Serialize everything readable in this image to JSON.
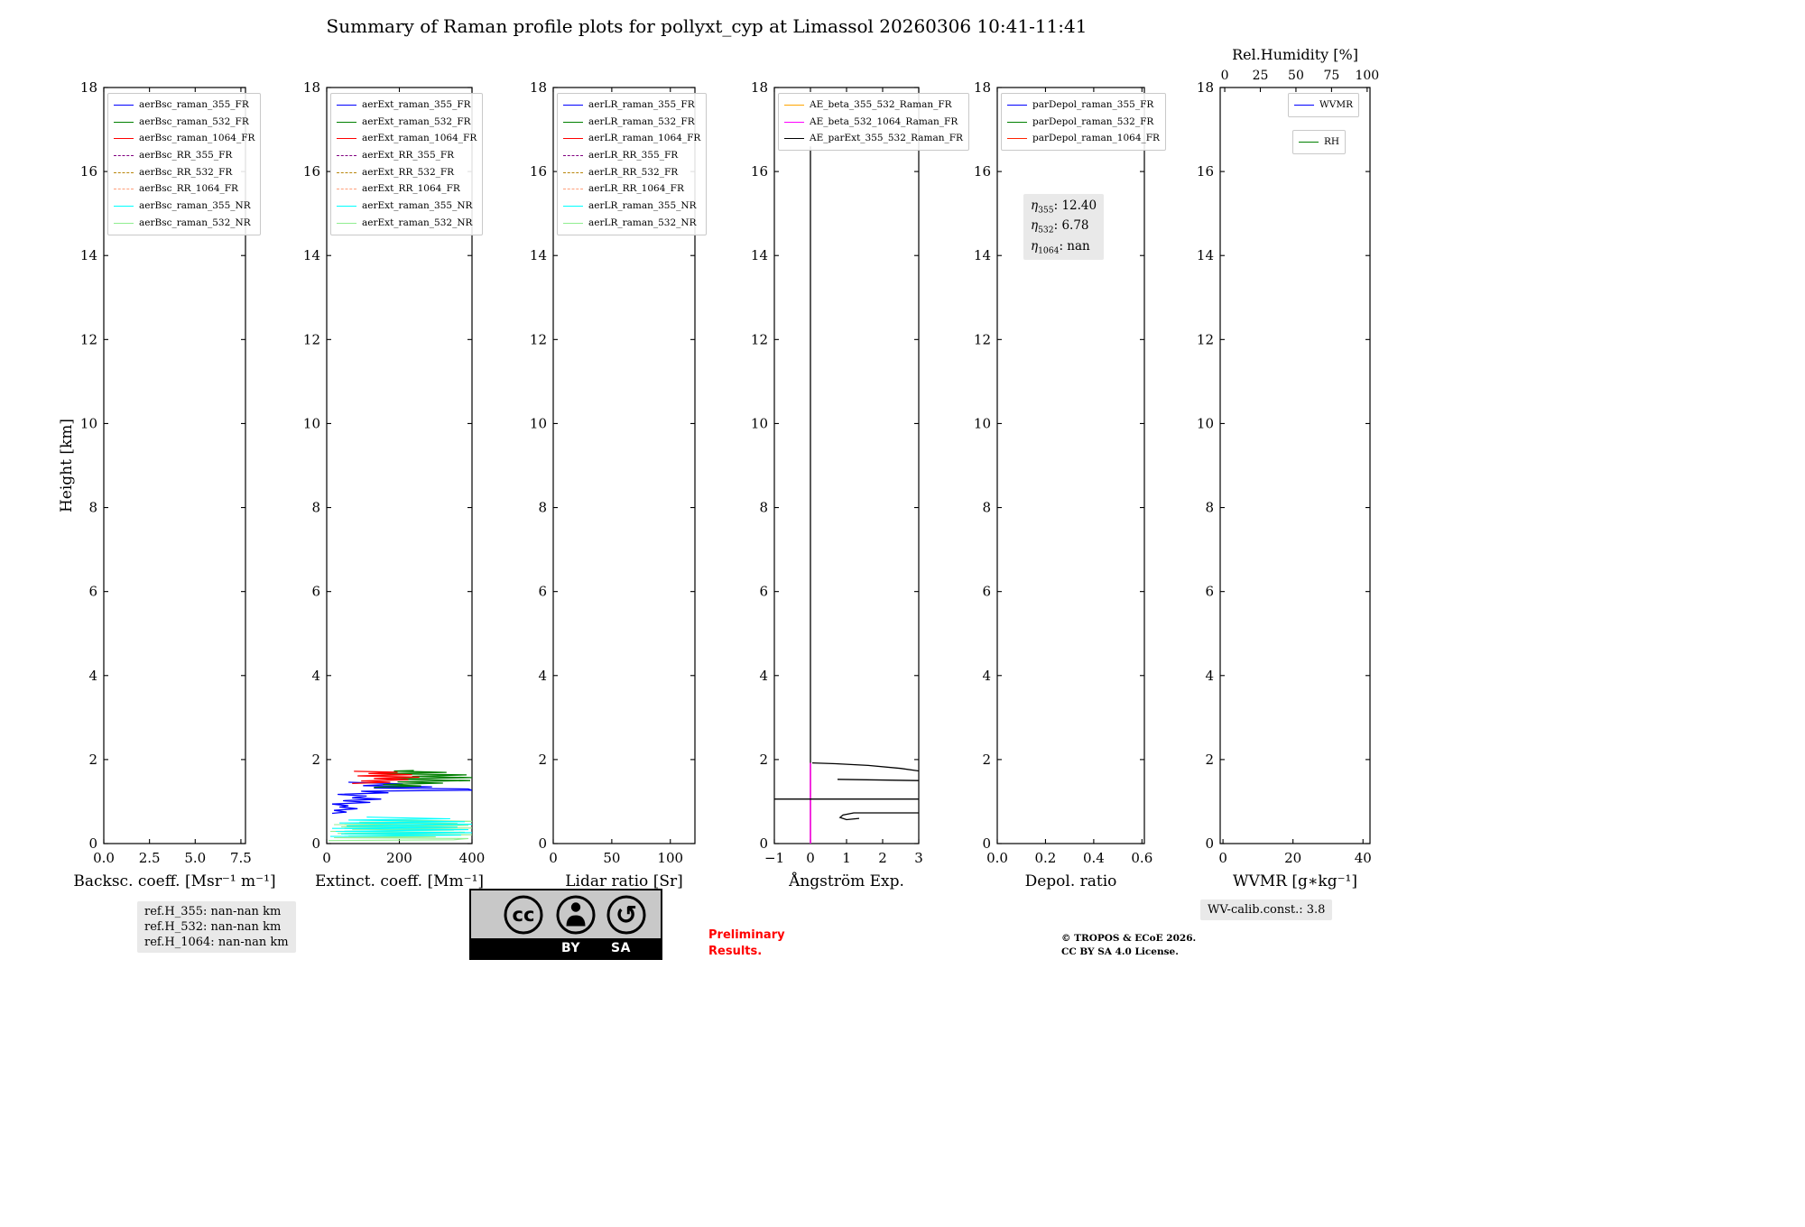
{
  "title": "Summary of Raman profile plots for pollyxt_cyp at Limassol 20260306 10:41-11:41",
  "chart_data": {
    "type": "line",
    "ylabel": "Height [km]",
    "ylim": [
      0,
      18
    ],
    "yticks": [
      0,
      2,
      4,
      6,
      8,
      10,
      12,
      14,
      16,
      18
    ],
    "grid": false,
    "panels": [
      {
        "id": "backscatter",
        "xlabel": "Backsc. coeff. [Msr⁻¹ m⁻¹]",
        "xlim": [
          0,
          7.75
        ],
        "xticks": [
          0,
          2.5,
          5,
          7.5
        ],
        "xtick_labels": [
          "0.0",
          "2.5",
          "5.0",
          "7.5"
        ],
        "legend": [
          {
            "label": "aerBsc_raman_355_FR",
            "color": "#0000ff"
          },
          {
            "label": "aerBsc_raman_532_FR",
            "color": "#008000"
          },
          {
            "label": "aerBsc_raman_1064_FR",
            "color": "#ff0000"
          },
          {
            "label": "aerBsc_RR_355_FR",
            "color": "#800080",
            "dash": true
          },
          {
            "label": "aerBsc_RR_532_FR",
            "color": "#b8860b",
            "dash": true
          },
          {
            "label": "aerBsc_RR_1064_FR",
            "color": "#ffa07a",
            "dash": true
          },
          {
            "label": "aerBsc_raman_355_NR",
            "color": "#00ffff"
          },
          {
            "label": "aerBsc_raman_532_NR",
            "color": "#90ee90"
          }
        ],
        "series": []
      },
      {
        "id": "extinction",
        "xlabel": "Extinct. coeff. [Mm⁻¹]",
        "xlim": [
          0,
          400
        ],
        "xticks": [
          0,
          200,
          400
        ],
        "xtick_labels": [
          "0",
          "200",
          "400"
        ],
        "legend": [
          {
            "label": "aerExt_raman_355_FR",
            "color": "#0000ff"
          },
          {
            "label": "aerExt_raman_532_FR",
            "color": "#008000"
          },
          {
            "label": "aerExt_raman_1064_FR",
            "color": "#ff0000"
          },
          {
            "label": "aerExt_RR_355_FR",
            "color": "#800080",
            "dash": true
          },
          {
            "label": "aerExt_RR_532_FR",
            "color": "#b8860b",
            "dash": true
          },
          {
            "label": "aerExt_RR_1064_FR",
            "color": "#ffa07a",
            "dash": true
          },
          {
            "label": "aerExt_raman_355_NR",
            "color": "#00ffff"
          },
          {
            "label": "aerExt_raman_532_NR",
            "color": "#90ee90"
          }
        ],
        "series": [
          {
            "name": "aerExt_raman_532_NR",
            "color": "#90ee90",
            "width": 1.1,
            "points": [
              [
                5,
                0.07
              ],
              [
                350,
                0.09
              ],
              [
                390,
                0.12
              ],
              [
                20,
                0.14
              ],
              [
                300,
                0.16
              ],
              [
                60,
                0.18
              ],
              [
                400,
                0.21
              ],
              [
                30,
                0.24
              ],
              [
                380,
                0.27
              ],
              [
                10,
                0.29
              ],
              [
                350,
                0.32
              ],
              [
                70,
                0.34
              ],
              [
                400,
                0.37
              ],
              [
                40,
                0.4
              ],
              [
                390,
                0.43
              ],
              [
                20,
                0.45
              ],
              [
                360,
                0.48
              ],
              [
                90,
                0.51
              ],
              [
                400,
                0.53
              ],
              [
                120,
                0.57
              ]
            ]
          },
          {
            "name": "aerExt_raman_355_NR",
            "color": "#00ffff",
            "width": 1.1,
            "points": [
              [
                10,
                0.17
              ],
              [
                370,
                0.2
              ],
              [
                40,
                0.23
              ],
              [
                400,
                0.26
              ],
              [
                25,
                0.29
              ],
              [
                390,
                0.33
              ],
              [
                15,
                0.36
              ],
              [
                360,
                0.39
              ],
              [
                55,
                0.42
              ],
              [
                400,
                0.46
              ],
              [
                35,
                0.49
              ],
              [
                380,
                0.52
              ],
              [
                60,
                0.56
              ],
              [
                340,
                0.59
              ],
              [
                110,
                0.63
              ]
            ]
          },
          {
            "name": "aerExt_raman_355_FR",
            "color": "#0000ff",
            "width": 1.3,
            "points": [
              [
                15,
                0.72
              ],
              [
                55,
                0.75
              ],
              [
                20,
                0.79
              ],
              [
                85,
                0.83
              ],
              [
                35,
                0.87
              ],
              [
                60,
                0.9
              ],
              [
                15,
                0.94
              ],
              [
                120,
                0.98
              ],
              [
                45,
                1.02
              ],
              [
                150,
                1.06
              ],
              [
                70,
                1.09
              ],
              [
                110,
                1.13
              ],
              [
                30,
                1.17
              ],
              [
                170,
                1.21
              ],
              [
                95,
                1.245
              ],
              [
                400,
                1.27
              ],
              [
                390,
                1.3
              ],
              [
                130,
                1.32
              ],
              [
                290,
                1.35
              ],
              [
                100,
                1.38
              ],
              [
                210,
                1.42
              ],
              [
                60,
                1.46
              ]
            ]
          },
          {
            "name": "aerExt_raman_532_FR",
            "color": "#008000",
            "width": 1.3,
            "points": [
              [
                130,
                1.34
              ],
              [
                260,
                1.37
              ],
              [
                155,
                1.405
              ],
              [
                320,
                1.44
              ],
              [
                195,
                1.47
              ],
              [
                395,
                1.5
              ],
              [
                165,
                1.535
              ],
              [
                400,
                1.57
              ],
              [
                235,
                1.6
              ],
              [
                385,
                1.635
              ],
              [
                150,
                1.665
              ],
              [
                330,
                1.695
              ],
              [
                185,
                1.725
              ],
              [
                240,
                1.74
              ]
            ]
          },
          {
            "name": "aerExt_raman_1064_FR",
            "color": "#ff0000",
            "width": 1.3,
            "points": [
              [
                70,
                1.43
              ],
              [
                175,
                1.46
              ],
              [
                95,
                1.49
              ],
              [
                225,
                1.52
              ],
              [
                130,
                1.55
              ],
              [
                255,
                1.58
              ],
              [
                85,
                1.61
              ],
              [
                235,
                1.64
              ],
              [
                115,
                1.67
              ],
              [
                195,
                1.7
              ],
              [
                75,
                1.72
              ]
            ]
          }
        ]
      },
      {
        "id": "lidar-ratio",
        "xlabel": "Lidar ratio [Sr]",
        "xlim": [
          0,
          121
        ],
        "xticks": [
          0,
          50,
          100
        ],
        "xtick_labels": [
          "0",
          "50",
          "100"
        ],
        "legend": [
          {
            "label": "aerLR_raman_355_FR",
            "color": "#0000ff"
          },
          {
            "label": "aerLR_raman_532_FR",
            "color": "#008000"
          },
          {
            "label": "aerLR_raman_1064_FR",
            "color": "#ff0000"
          },
          {
            "label": "aerLR_RR_355_FR",
            "color": "#800080",
            "dash": true
          },
          {
            "label": "aerLR_RR_532_FR",
            "color": "#b8860b",
            "dash": true
          },
          {
            "label": "aerLR_RR_1064_FR",
            "color": "#ffa07a",
            "dash": true
          },
          {
            "label": "aerLR_raman_355_NR",
            "color": "#00ffff"
          },
          {
            "label": "aerLR_raman_532_NR",
            "color": "#90ee90"
          }
        ],
        "series": []
      },
      {
        "id": "angstrom",
        "xlabel": "Ångström Exp.",
        "xlim": [
          -1,
          3
        ],
        "xticks": [
          -1,
          0,
          1,
          2,
          3
        ],
        "xtick_labels": [
          "−1",
          "0",
          "1",
          "2",
          "3"
        ],
        "legend": [
          {
            "label": "AE_beta_355_532_Raman_FR",
            "color": "#ffa500"
          },
          {
            "label": "AE_beta_532_1064_Raman_FR",
            "color": "#ff00ff"
          },
          {
            "label": "AE_parExt_355_532_Raman_FR",
            "color": "#000000"
          }
        ],
        "series": [
          {
            "name": "AE_parExt_355_532_Raman_FR",
            "color": "#000000",
            "width": 1.3,
            "points": [
              [
                0,
                0
              ],
              [
                0,
                16.6
              ]
            ]
          },
          {
            "name": "AE_beta_355_532_Raman_FR",
            "color": "#ffa500",
            "width": 1.3,
            "points": [
              [
                0,
                0
              ],
              [
                0,
                1.92
              ]
            ]
          },
          {
            "name": "AE_beta_532_1064_Raman_FR",
            "color": "#ff00ff",
            "width": 1.5,
            "points": [
              [
                0,
                0
              ],
              [
                0,
                1.92
              ]
            ]
          },
          {
            "name": "AE_parExt_segment_upper",
            "color": "#000000",
            "width": 1.3,
            "points": [
              [
                0.05,
                1.92
              ],
              [
                0.7,
                1.9
              ],
              [
                1.6,
                1.86
              ],
              [
                2.5,
                1.79
              ],
              [
                3,
                1.73
              ]
            ]
          },
          {
            "name": "AE_parExt_segment_mid",
            "color": "#000000",
            "width": 1.3,
            "points": [
              [
                0.75,
                1.53
              ],
              [
                3,
                1.5
              ]
            ]
          },
          {
            "name": "AE_parExt_segment_full",
            "color": "#000000",
            "width": 1.3,
            "points": [
              [
                -1,
                1.06
              ],
              [
                3,
                1.06
              ]
            ]
          },
          {
            "name": "AE_parExt_segment_lower",
            "color": "#000000",
            "width": 1.3,
            "points": [
              [
                3,
                0.73
              ],
              [
                1.2,
                0.73
              ],
              [
                0.9,
                0.68
              ],
              [
                0.82,
                0.62
              ],
              [
                1.0,
                0.57
              ],
              [
                1.35,
                0.6
              ]
            ]
          }
        ]
      },
      {
        "id": "depol",
        "xlabel": "Depol. ratio",
        "xlim": [
          0,
          0.61
        ],
        "xticks": [
          0,
          0.2,
          0.4,
          0.6
        ],
        "xtick_labels": [
          "0.0",
          "0.2",
          "0.4",
          "0.6"
        ],
        "legend": [
          {
            "label": "parDepol_raman_355_FR",
            "color": "#0000ff"
          },
          {
            "label": "parDepol_raman_532_FR",
            "color": "#008000"
          },
          {
            "label": "parDepol_raman_1064_FR",
            "color": "#ff2200"
          }
        ],
        "series": []
      },
      {
        "id": "wvmr",
        "xlabel": "WVMR [g∗kg⁻¹]",
        "xlim": [
          -0.8,
          42
        ],
        "xticks": [
          0,
          20,
          40
        ],
        "xtick_labels": [
          "0",
          "20",
          "40"
        ],
        "top_axis": {
          "label": "Rel.Humidity [%]",
          "xlim": [
            -3.2,
            102
          ],
          "ticks": [
            0,
            25,
            50,
            75,
            100
          ],
          "tick_labels": [
            "0",
            "25",
            "50",
            "75",
            "100"
          ]
        },
        "legend": [
          {
            "label": "WVMR",
            "color": "#0000ff"
          },
          {
            "label": "RH",
            "color": "#008000"
          }
        ],
        "legend_layout": "split-right",
        "series": []
      }
    ]
  },
  "annotations": {
    "eta": [
      {
        "symbol": "η",
        "sub": "355",
        "value": "12.40"
      },
      {
        "symbol": "η",
        "sub": "532",
        "value": "6.78"
      },
      {
        "symbol": "η",
        "sub": "1064",
        "value": "nan"
      }
    ]
  },
  "footer": {
    "ref_h": [
      "ref.H_355: nan-nan km",
      "ref.H_532: nan-nan km",
      "ref.H_1064: nan-nan km"
    ],
    "preliminary": "Preliminary\nResults.",
    "copyright": "© TROPOS & ECoE 2026.\nCC BY SA 4.0 License.",
    "wv_calib": "WV-calib.const.: 3.8",
    "cc_badge": {
      "logo_text": "cc",
      "by": "BY",
      "sa": "SA",
      "icons": [
        "cc-icon",
        "attribution-person-icon",
        "share-alike-icon"
      ]
    }
  }
}
